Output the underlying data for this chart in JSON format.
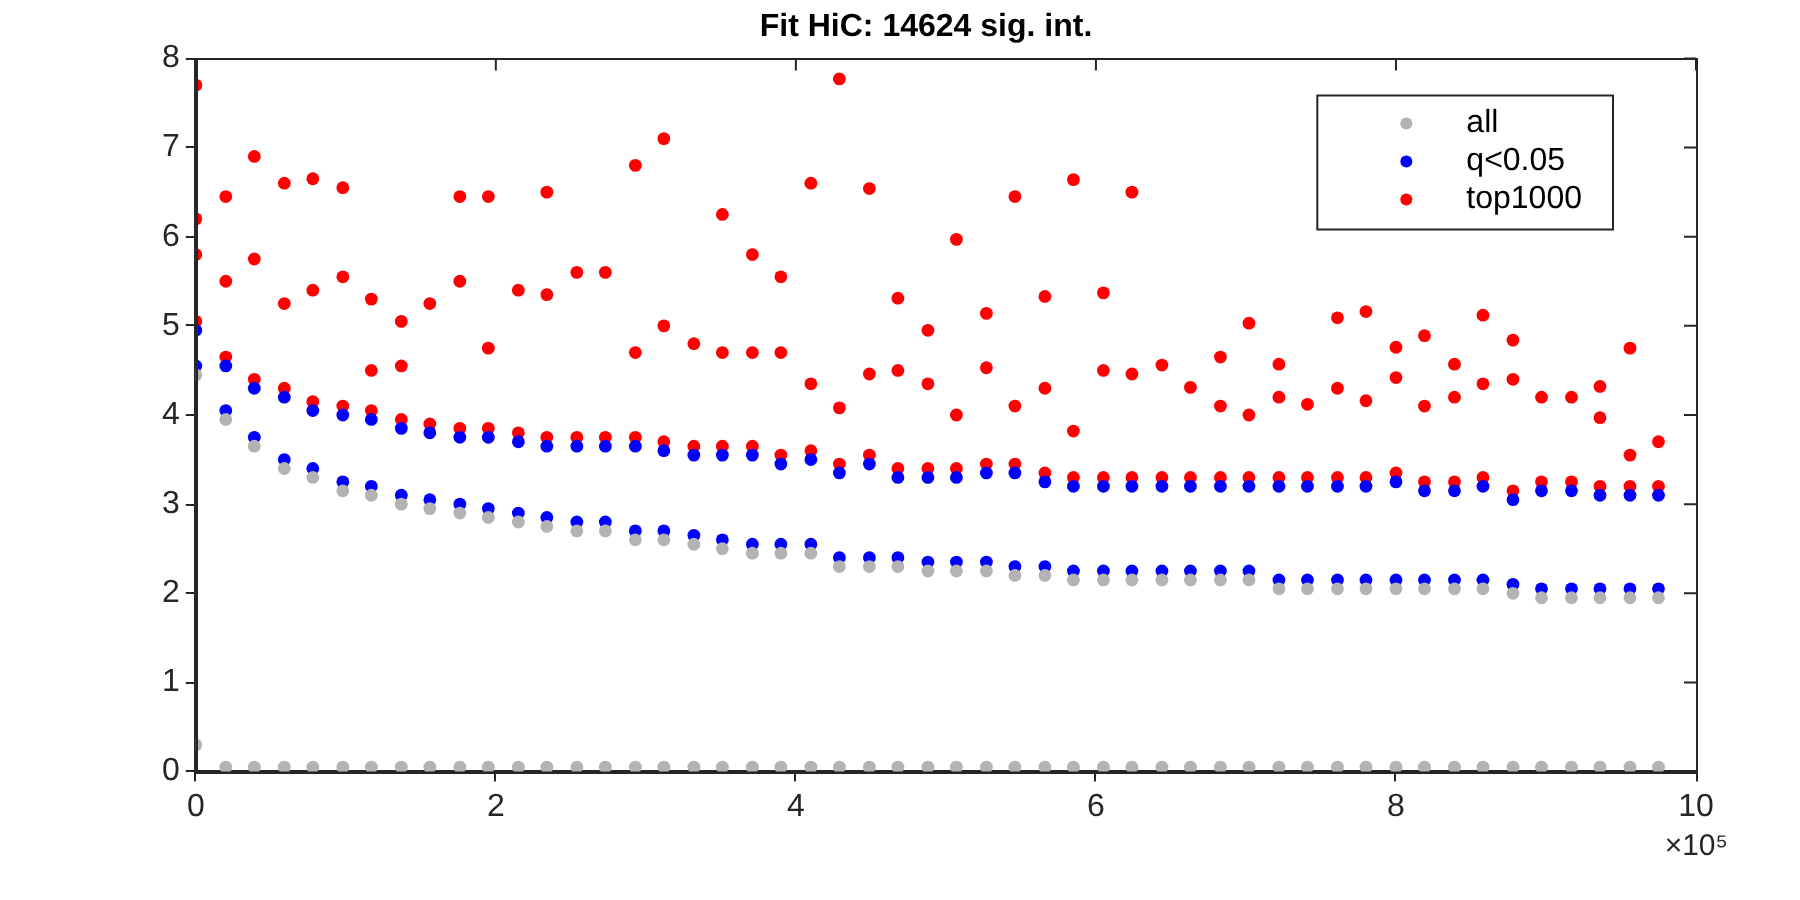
{
  "chart_data": {
    "type": "scatter",
    "title": "Fit HiC: 14624 sig. int.",
    "annotations": [
      "×10⁵"
    ],
    "marker": "circle",
    "grid": false,
    "legend": "top right",
    "xlim": [
      0,
      10
    ],
    "xticks": [
      0,
      2,
      4,
      6,
      8,
      10
    ],
    "ylim": [
      0,
      8
    ],
    "yticks": [
      0,
      1,
      2,
      3,
      4,
      5,
      6,
      7,
      8
    ],
    "series": [
      {
        "name": "all",
        "color": "#b3b3b3",
        "x": [
          0,
          0,
          0.2,
          0.2,
          0.39,
          0.39,
          0.59,
          0.59,
          0.78,
          0.78,
          0.98,
          0.98,
          1.17,
          1.17,
          1.37,
          1.37,
          1.56,
          1.56,
          1.76,
          1.76,
          1.95,
          1.95,
          2.15,
          2.15,
          2.34,
          2.34,
          2.54,
          2.54,
          2.73,
          2.73,
          2.93,
          2.93,
          3.12,
          3.12,
          3.32,
          3.32,
          3.51,
          3.51,
          3.71,
          3.71,
          3.9,
          3.9,
          4.1,
          4.1,
          4.29,
          4.29,
          4.49,
          4.49,
          4.68,
          4.68,
          4.88,
          4.88,
          5.07,
          5.07,
          5.27,
          5.27,
          5.46,
          5.46,
          5.66,
          5.66,
          5.85,
          5.85,
          6.05,
          6.05,
          6.24,
          6.24,
          6.44,
          6.44,
          6.63,
          6.63,
          6.83,
          6.83,
          7.02,
          7.02,
          7.22,
          7.22,
          7.41,
          7.41,
          7.61,
          7.61,
          7.8,
          7.8,
          8.0,
          8.0,
          8.19,
          8.19,
          8.39,
          8.39,
          8.58,
          8.58,
          8.78,
          8.78,
          8.97,
          8.97,
          9.17,
          9.17,
          9.36,
          9.36,
          9.56,
          9.56,
          9.75,
          9.75
        ],
        "values": [
          0.3,
          4.45,
          0.05,
          3.95,
          0.05,
          3.65,
          0.05,
          3.4,
          0.05,
          3.3,
          0.05,
          3.15,
          0.05,
          3.1,
          0.05,
          3.0,
          0.05,
          2.95,
          0.05,
          2.9,
          0.05,
          2.85,
          0.05,
          2.8,
          0.05,
          2.75,
          0.05,
          2.7,
          0.05,
          2.7,
          0.05,
          2.6,
          0.05,
          2.6,
          0.05,
          2.55,
          0.05,
          2.5,
          0.05,
          2.45,
          0.05,
          2.45,
          0.05,
          2.45,
          0.05,
          2.3,
          0.05,
          2.3,
          0.05,
          2.3,
          0.05,
          2.25,
          0.05,
          2.25,
          0.05,
          2.25,
          0.05,
          2.2,
          0.05,
          2.2,
          0.05,
          2.15,
          0.05,
          2.15,
          0.05,
          2.15,
          0.05,
          2.15,
          0.05,
          2.15,
          0.05,
          2.15,
          0.05,
          2.15,
          0.05,
          2.05,
          0.05,
          2.05,
          0.05,
          2.05,
          0.05,
          2.05,
          0.05,
          2.05,
          0.05,
          2.05,
          0.05,
          2.05,
          0.05,
          2.05,
          0.05,
          2.0,
          0.05,
          1.95,
          0.05,
          1.95,
          0.05,
          1.95,
          0.05,
          1.95,
          0.05,
          1.95
        ]
      },
      {
        "name": "q<0.05",
        "color": "#0000ff",
        "x": [
          0,
          0,
          0.2,
          0.2,
          0.39,
          0.39,
          0.59,
          0.59,
          0.78,
          0.78,
          0.98,
          0.98,
          1.17,
          1.17,
          1.37,
          1.37,
          1.56,
          1.56,
          1.76,
          1.76,
          1.95,
          1.95,
          2.15,
          2.15,
          2.34,
          2.34,
          2.54,
          2.54,
          2.73,
          2.73,
          2.93,
          2.93,
          3.12,
          3.12,
          3.32,
          3.32,
          3.51,
          3.51,
          3.71,
          3.71,
          3.9,
          3.9,
          4.1,
          4.1,
          4.29,
          4.29,
          4.49,
          4.49,
          4.68,
          4.68,
          4.88,
          4.88,
          5.07,
          5.07,
          5.27,
          5.27,
          5.46,
          5.46,
          5.66,
          5.66,
          5.85,
          5.85,
          6.05,
          6.05,
          6.24,
          6.24,
          6.44,
          6.44,
          6.63,
          6.63,
          6.83,
          6.83,
          7.02,
          7.02,
          7.22,
          7.22,
          7.41,
          7.41,
          7.61,
          7.61,
          7.8,
          7.8,
          8.0,
          8.0,
          8.19,
          8.19,
          8.39,
          8.39,
          8.58,
          8.58,
          8.78,
          8.78,
          8.97,
          8.97,
          9.17,
          9.17,
          9.36,
          9.36,
          9.56,
          9.56,
          9.75,
          9.75
        ],
        "values": [
          4.55,
          4.95,
          4.05,
          4.55,
          3.75,
          4.3,
          3.5,
          4.2,
          3.4,
          4.05,
          3.25,
          4.0,
          3.2,
          3.95,
          3.1,
          3.85,
          3.05,
          3.8,
          3.0,
          3.75,
          2.95,
          3.75,
          2.9,
          3.7,
          2.85,
          3.65,
          2.8,
          3.65,
          2.8,
          3.65,
          2.7,
          3.65,
          2.7,
          3.6,
          2.65,
          3.55,
          2.6,
          3.55,
          2.55,
          3.55,
          2.55,
          3.45,
          2.55,
          3.5,
          2.4,
          3.35,
          2.4,
          3.45,
          2.4,
          3.3,
          2.35,
          3.3,
          2.35,
          3.3,
          2.35,
          3.35,
          2.3,
          3.35,
          2.3,
          3.25,
          2.25,
          3.2,
          2.25,
          3.2,
          2.25,
          3.2,
          2.25,
          3.2,
          2.25,
          3.2,
          2.25,
          3.2,
          2.25,
          3.2,
          2.15,
          3.2,
          2.15,
          3.2,
          2.15,
          3.2,
          2.15,
          3.2,
          2.15,
          3.25,
          2.15,
          3.15,
          2.15,
          3.15,
          2.15,
          3.2,
          2.1,
          3.05,
          2.05,
          3.15,
          2.05,
          3.15,
          2.05,
          3.1,
          2.05,
          3.1,
          2.05,
          3.1
        ]
      },
      {
        "name": "top1000",
        "color": "#ff0000",
        "x": [
          0,
          0,
          0,
          0,
          0.2,
          0.2,
          0.2,
          0.39,
          0.39,
          0.39,
          0.59,
          0.59,
          0.59,
          0.78,
          0.78,
          0.78,
          0.98,
          0.98,
          0.98,
          1.17,
          1.17,
          1.17,
          1.37,
          1.37,
          1.37,
          1.56,
          1.56,
          1.76,
          1.76,
          1.76,
          1.95,
          1.95,
          1.95,
          2.15,
          2.15,
          2.34,
          2.34,
          2.34,
          2.54,
          2.54,
          2.73,
          2.73,
          2.93,
          2.93,
          2.93,
          3.12,
          3.12,
          3.12,
          3.32,
          3.32,
          3.51,
          3.51,
          3.51,
          3.71,
          3.71,
          3.71,
          3.9,
          3.9,
          3.9,
          4.1,
          4.1,
          4.1,
          4.29,
          4.29,
          4.29,
          4.49,
          4.49,
          4.49,
          4.68,
          4.68,
          4.68,
          4.88,
          4.88,
          4.88,
          5.07,
          5.07,
          5.07,
          5.27,
          5.27,
          5.27,
          5.46,
          5.46,
          5.46,
          5.66,
          5.66,
          5.66,
          5.85,
          5.85,
          5.85,
          6.05,
          6.05,
          6.05,
          6.24,
          6.24,
          6.24,
          6.44,
          6.44,
          6.63,
          6.63,
          6.83,
          6.83,
          6.83,
          7.02,
          7.02,
          7.02,
          7.22,
          7.22,
          7.22,
          7.41,
          7.41,
          7.61,
          7.61,
          7.61,
          7.8,
          7.8,
          7.8,
          8.0,
          8.0,
          8.0,
          8.19,
          8.19,
          8.19,
          8.39,
          8.39,
          8.39,
          8.58,
          8.58,
          8.58,
          8.78,
          8.78,
          8.78,
          8.97,
          8.97,
          9.17,
          9.17,
          9.36,
          9.36,
          9.36,
          9.56,
          9.56,
          9.56,
          9.75,
          9.75
        ],
        "values": [
          5.05,
          5.8,
          6.2,
          7.7,
          4.65,
          5.5,
          6.45,
          4.4,
          5.75,
          6.9,
          4.3,
          5.25,
          6.6,
          4.15,
          5.4,
          6.65,
          4.1,
          5.55,
          6.55,
          4.05,
          4.5,
          5.3,
          3.95,
          4.55,
          5.05,
          3.9,
          5.25,
          3.85,
          5.5,
          6.45,
          3.85,
          4.75,
          6.45,
          3.8,
          5.4,
          3.75,
          5.35,
          6.5,
          3.75,
          5.6,
          3.75,
          5.6,
          3.75,
          4.7,
          6.8,
          3.7,
          5.0,
          7.1,
          3.65,
          4.8,
          3.65,
          4.7,
          6.25,
          3.65,
          4.7,
          5.8,
          3.55,
          4.7,
          5.55,
          3.6,
          4.35,
          6.6,
          3.45,
          4.08,
          7.77,
          3.55,
          4.46,
          6.54,
          3.4,
          4.5,
          5.31,
          3.4,
          4.35,
          4.95,
          3.4,
          4.0,
          5.97,
          3.45,
          4.53,
          5.14,
          3.45,
          4.1,
          6.45,
          3.35,
          4.3,
          5.33,
          3.3,
          3.82,
          6.64,
          3.3,
          4.5,
          5.37,
          3.3,
          4.46,
          6.5,
          3.3,
          4.56,
          3.3,
          4.31,
          3.3,
          4.1,
          4.65,
          3.3,
          4.0,
          5.03,
          3.3,
          4.2,
          4.57,
          3.3,
          4.12,
          3.3,
          4.3,
          5.09,
          3.3,
          4.16,
          5.16,
          3.35,
          4.42,
          4.76,
          3.25,
          4.1,
          4.89,
          3.25,
          4.2,
          4.57,
          3.3,
          4.35,
          5.12,
          3.15,
          4.4,
          4.84,
          3.25,
          4.2,
          3.25,
          4.2,
          3.2,
          3.97,
          4.32,
          3.2,
          3.55,
          4.75,
          3.2,
          3.7
        ]
      }
    ]
  }
}
